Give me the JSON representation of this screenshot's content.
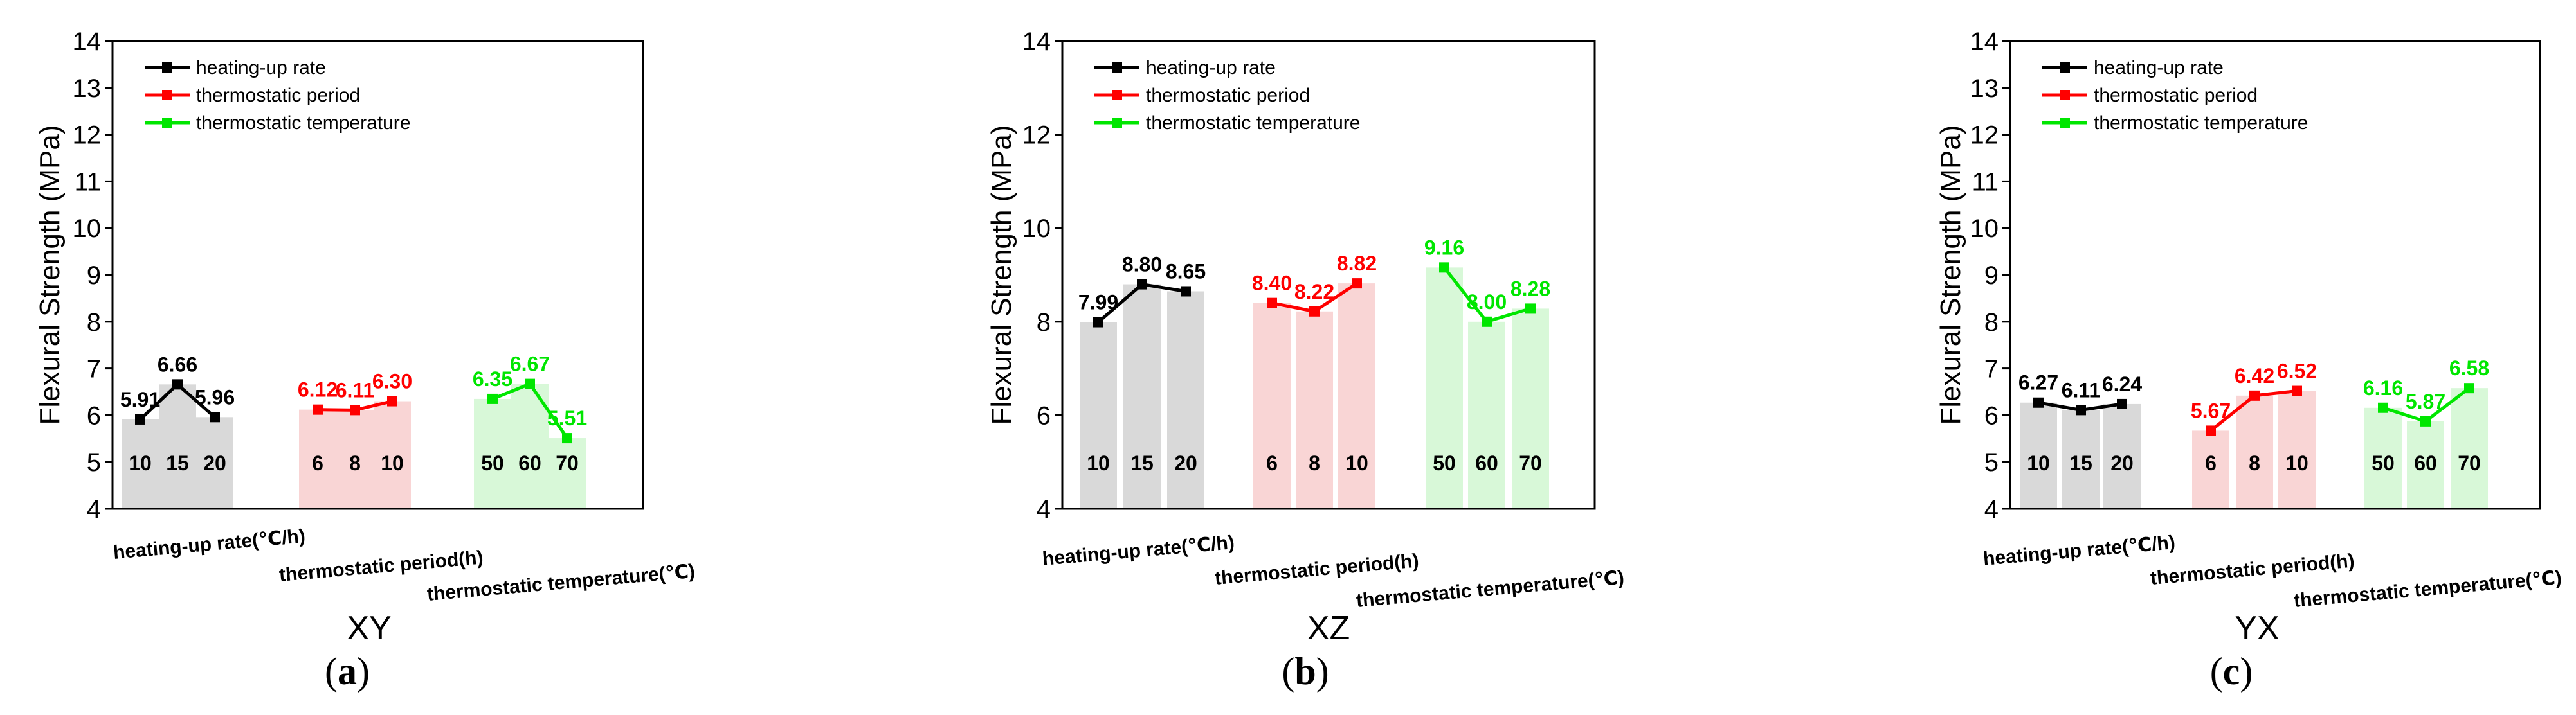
{
  "chart_data": [
    {
      "type": "bar+line",
      "panel": "(a)",
      "panel_letter": "a",
      "subtitle": "XY",
      "ylabel": "Flexural Strength (MPa)",
      "ylim": [
        4,
        14
      ],
      "yticks": [
        "4",
        "5",
        "6",
        "7",
        "8",
        "9",
        "10",
        "11",
        "12",
        "13",
        "14"
      ],
      "categories": [
        "heating-up rate(℃/h)",
        "thermostatic period(h)",
        "thermostatic temperature(℃)"
      ],
      "legend": [
        "heating-up rate",
        "thermostatic period",
        "thermostatic temperature"
      ],
      "series": [
        {
          "name": "heating-up rate",
          "color": "#000000",
          "bar_color": "#d9d9d9",
          "bar_labels": [
            "10",
            "15",
            "20"
          ],
          "values": [
            5.91,
            6.66,
            5.96
          ],
          "labels": [
            "5.91",
            "6.66",
            "5.96"
          ]
        },
        {
          "name": "thermostatic period",
          "color": "#ff0000",
          "bar_color": "#f9d5d5",
          "bar_labels": [
            "6",
            "8",
            "10"
          ],
          "values": [
            6.12,
            6.11,
            6.3
          ],
          "labels": [
            "6.12",
            "6.11",
            "6.30"
          ]
        },
        {
          "name": "thermostatic temperature",
          "color": "#00e600",
          "bar_color": "#d8f8d8",
          "bar_labels": [
            "50",
            "60",
            "70"
          ],
          "values": [
            6.35,
            6.67,
            5.51
          ],
          "labels": [
            "6.35",
            "6.67",
            "5.51"
          ]
        }
      ]
    },
    {
      "type": "bar+line",
      "panel": "(b)",
      "panel_letter": "b",
      "subtitle": "XZ",
      "ylabel": "Flexural Strength (MPa)",
      "ylim": [
        4,
        14
      ],
      "yticks": [
        "4",
        "6",
        "8",
        "10",
        "12",
        "14"
      ],
      "categories": [
        "heating-up rate(℃/h)",
        "thermostatic period(h)",
        "thermostatic temperature(℃)"
      ],
      "legend": [
        "heating-up rate",
        "thermostatic period",
        "thermostatic temperature"
      ],
      "series": [
        {
          "name": "heating-up rate",
          "color": "#000000",
          "bar_color": "#d9d9d9",
          "bar_labels": [
            "10",
            "15",
            "20"
          ],
          "values": [
            7.99,
            8.8,
            8.65
          ],
          "labels": [
            "7.99",
            "8.80",
            "8.65"
          ]
        },
        {
          "name": "thermostatic period",
          "color": "#ff0000",
          "bar_color": "#f9d5d5",
          "bar_labels": [
            "6",
            "8",
            "10"
          ],
          "values": [
            8.4,
            8.22,
            8.82
          ],
          "labels": [
            "8.40",
            "8.22",
            "8.82"
          ]
        },
        {
          "name": "thermostatic temperature",
          "color": "#00e600",
          "bar_color": "#d8f8d8",
          "bar_labels": [
            "50",
            "60",
            "70"
          ],
          "values": [
            9.16,
            8.0,
            8.28
          ],
          "labels": [
            "9.16",
            "8.00",
            "8.28"
          ]
        }
      ]
    },
    {
      "type": "bar+line",
      "panel": "(c)",
      "panel_letter": "c",
      "subtitle": "YX",
      "ylabel": "Flexural Strength (MPa)",
      "ylim": [
        4,
        14
      ],
      "yticks": [
        "4",
        "5",
        "6",
        "7",
        "8",
        "9",
        "10",
        "11",
        "12",
        "13",
        "14"
      ],
      "categories": [
        "heating-up rate(℃/h)",
        "thermostatic period(h)",
        "thermostatic temperature(℃)"
      ],
      "legend": [
        "heating-up rate",
        "thermostatic period",
        "thermostatic temperature"
      ],
      "series": [
        {
          "name": "heating-up rate",
          "color": "#000000",
          "bar_color": "#d9d9d9",
          "bar_labels": [
            "10",
            "15",
            "20"
          ],
          "values": [
            6.27,
            6.11,
            6.24
          ],
          "labels": [
            "6.27",
            "6.11",
            "6.24"
          ]
        },
        {
          "name": "thermostatic period",
          "color": "#ff0000",
          "bar_color": "#f9d5d5",
          "bar_labels": [
            "6",
            "8",
            "10"
          ],
          "values": [
            5.67,
            6.42,
            6.52
          ],
          "labels": [
            "5.67",
            "6.42",
            "6.52"
          ]
        },
        {
          "name": "thermostatic temperature",
          "color": "#00e600",
          "bar_color": "#d8f8d8",
          "bar_labels": [
            "50",
            "60",
            "70"
          ],
          "values": [
            6.16,
            5.87,
            6.58
          ],
          "labels": [
            "6.16",
            "5.87",
            "6.58"
          ]
        }
      ]
    }
  ]
}
